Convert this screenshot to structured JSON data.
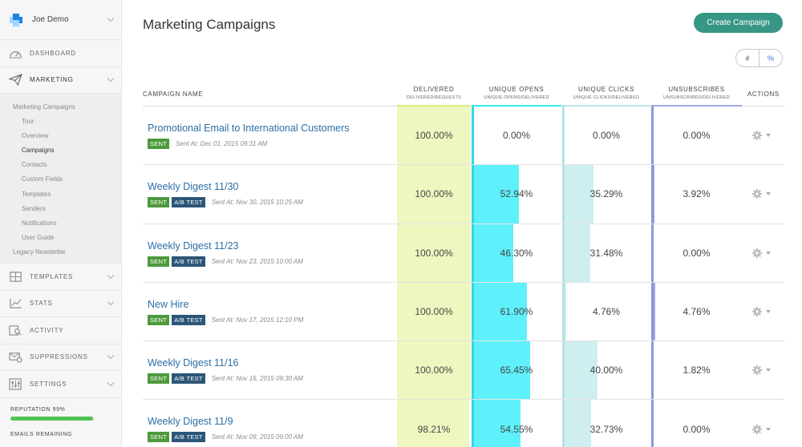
{
  "sidebar": {
    "user_name": "Joe Demo",
    "nav": [
      {
        "label": "DASHBOARD",
        "icon": "speedometer-icon"
      },
      {
        "label": "MARKETING",
        "icon": "paper-plane-icon"
      }
    ],
    "submenu": [
      {
        "label": "Marketing Campaigns",
        "level": "top"
      },
      {
        "label": "Tour",
        "level": "sub"
      },
      {
        "label": "Overview",
        "level": "sub"
      },
      {
        "label": "Campaigns",
        "level": "sub",
        "current": true
      },
      {
        "label": "Contacts",
        "level": "sub"
      },
      {
        "label": "Custom Fields",
        "level": "sub"
      },
      {
        "label": "Templates",
        "level": "sub"
      },
      {
        "label": "Senders",
        "level": "sub"
      },
      {
        "label": "Notifications",
        "level": "sub"
      },
      {
        "label": "User Guide",
        "level": "sub"
      },
      {
        "label": "Legacy Newsletter",
        "level": "top"
      }
    ],
    "nav_bottom": [
      {
        "label": "TEMPLATES",
        "icon": "puzzle-icon"
      },
      {
        "label": "STATS",
        "icon": "bar-chart-icon"
      },
      {
        "label": "ACTIVITY",
        "icon": "search-doc-icon"
      },
      {
        "label": "SUPPRESSIONS",
        "icon": "envelope-block-icon"
      },
      {
        "label": "SETTINGS",
        "icon": "sliders-icon"
      }
    ],
    "reputation_label": "REPUTATION 99%",
    "reputation": 0.99,
    "emails_remaining_label": "EMAILS REMAINING"
  },
  "page": {
    "title": "Marketing Campaigns",
    "create_label": "Create Campaign",
    "toggle": [
      "#",
      "%"
    ]
  },
  "table": {
    "headers": {
      "name": "CAMPAIGN NAME",
      "delivered": "DELIVERED",
      "delivered_sub": "DELIVERED/REQUESTS",
      "opens": "UNIQUE OPENS",
      "opens_sub": "UNIQUE OPENS/DELIVERED",
      "clicks": "UNIQUE CLICKS",
      "clicks_sub": "UNIQUE CLICKS/DELIVERED",
      "unsubs": "UNSUBSCRIBES",
      "unsubs_sub": "UNSUBSCRIBES/DELIVERED",
      "actions": "ACTIONS"
    },
    "badges": {
      "sent": "SENT",
      "ab": "A/B TEST"
    },
    "rows": [
      {
        "name": "Promotional Email to International Customers",
        "ab": false,
        "sent_at": "Sent At: Dec 01, 2015 09:31 AM",
        "delivered": "100.00%",
        "opens": "0.00%",
        "clicks": "0.00%",
        "unsubs": "0.00%",
        "d": 100,
        "o": 0,
        "c": 0,
        "u": 0
      },
      {
        "name": "Weekly Digest 11/30",
        "ab": true,
        "sent_at": "Sent At: Nov 30, 2015 10:25 AM",
        "delivered": "100.00%",
        "opens": "52.94%",
        "clicks": "35.29%",
        "unsubs": "3.92%",
        "d": 100,
        "o": 52.94,
        "c": 35.29,
        "u": 3.92
      },
      {
        "name": "Weekly Digest 11/23",
        "ab": true,
        "sent_at": "Sent At: Nov 23, 2015 10:00 AM",
        "delivered": "100.00%",
        "opens": "46.30%",
        "clicks": "31.48%",
        "unsubs": "0.00%",
        "d": 100,
        "o": 46.3,
        "c": 31.48,
        "u": 0
      },
      {
        "name": "New Hire",
        "ab": true,
        "sent_at": "Sent At: Nov 17, 2015 12:10 PM",
        "delivered": "100.00%",
        "opens": "61.90%",
        "clicks": "4.76%",
        "unsubs": "4.76%",
        "d": 100,
        "o": 61.9,
        "c": 4.76,
        "u": 4.76
      },
      {
        "name": "Weekly Digest 11/16",
        "ab": true,
        "sent_at": "Sent At: Nov 16, 2015 09:30 AM",
        "delivered": "100.00%",
        "opens": "65.45%",
        "clicks": "40.00%",
        "unsubs": "1.82%",
        "d": 100,
        "o": 65.45,
        "c": 40.0,
        "u": 1.82
      },
      {
        "name": "Weekly Digest 11/9",
        "ab": true,
        "sent_at": "Sent At: Nov 09, 2015 09:00 AM",
        "delivered": "98.21%",
        "opens": "54.55%",
        "clicks": "32.73%",
        "unsubs": "0.00%",
        "d": 98.21,
        "o": 54.55,
        "c": 32.73,
        "u": 0
      }
    ]
  },
  "colors": {
    "delivered": "#eef7c0",
    "opens": "#5ef1fb",
    "clicks": "#cfeef0",
    "unsubs": "#9fa6e6",
    "accent": "#379685"
  }
}
